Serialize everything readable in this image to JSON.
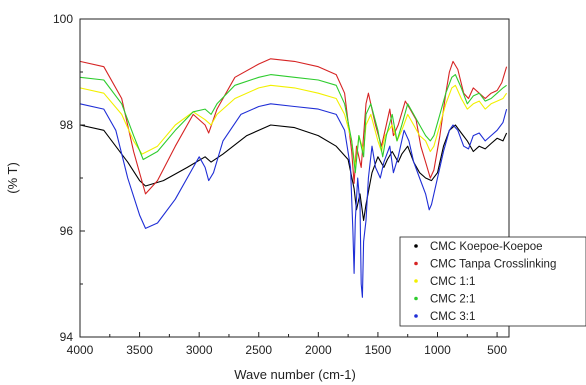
{
  "chart_data": {
    "type": "line",
    "title": "",
    "xlabel": "Wave number (cm-1)",
    "ylabel": "(% T)",
    "xlim": [
      4000,
      400
    ],
    "ylim": [
      94,
      100
    ],
    "x_reversed": true,
    "xticks": [
      4000,
      3500,
      3000,
      2500,
      2000,
      1500,
      1000,
      500
    ],
    "yticks": [
      94,
      96,
      98,
      100
    ],
    "grid": false,
    "legend_position": "bottom-right",
    "series": [
      {
        "name": "CMC Koepoe-Koepoe",
        "color": "#000000",
        "points": [
          [
            4000,
            98.0
          ],
          [
            3800,
            97.9
          ],
          [
            3600,
            97.3
          ],
          [
            3500,
            96.95
          ],
          [
            3450,
            96.85
          ],
          [
            3300,
            96.95
          ],
          [
            3100,
            97.2
          ],
          [
            2950,
            97.4
          ],
          [
            2900,
            97.3
          ],
          [
            2800,
            97.45
          ],
          [
            2600,
            97.8
          ],
          [
            2400,
            98.0
          ],
          [
            2200,
            97.95
          ],
          [
            2000,
            97.8
          ],
          [
            1850,
            97.6
          ],
          [
            1750,
            97.35
          ],
          [
            1700,
            96.8
          ],
          [
            1680,
            96.4
          ],
          [
            1650,
            96.7
          ],
          [
            1620,
            96.2
          ],
          [
            1600,
            96.5
          ],
          [
            1550,
            97.1
          ],
          [
            1500,
            97.4
          ],
          [
            1450,
            97.2
          ],
          [
            1420,
            97.35
          ],
          [
            1380,
            97.5
          ],
          [
            1330,
            97.3
          ],
          [
            1300,
            97.45
          ],
          [
            1250,
            97.6
          ],
          [
            1200,
            97.3
          ],
          [
            1150,
            97.1
          ],
          [
            1100,
            97.0
          ],
          [
            1050,
            96.95
          ],
          [
            1000,
            97.1
          ],
          [
            950,
            97.6
          ],
          [
            900,
            97.9
          ],
          [
            850,
            98.0
          ],
          [
            800,
            97.85
          ],
          [
            750,
            97.7
          ],
          [
            700,
            97.5
          ],
          [
            650,
            97.6
          ],
          [
            600,
            97.55
          ],
          [
            550,
            97.65
          ],
          [
            500,
            97.75
          ],
          [
            450,
            97.7
          ],
          [
            420,
            97.85
          ]
        ]
      },
      {
        "name": "CMC Tanpa Crosslinking",
        "color": "#d62424",
        "points": [
          [
            4000,
            99.2
          ],
          [
            3800,
            99.1
          ],
          [
            3650,
            98.5
          ],
          [
            3550,
            97.5
          ],
          [
            3450,
            96.7
          ],
          [
            3350,
            96.95
          ],
          [
            3200,
            97.6
          ],
          [
            3050,
            98.2
          ],
          [
            2950,
            98.0
          ],
          [
            2920,
            97.85
          ],
          [
            2850,
            98.3
          ],
          [
            2700,
            98.9
          ],
          [
            2500,
            99.15
          ],
          [
            2400,
            99.25
          ],
          [
            2200,
            99.2
          ],
          [
            2000,
            99.1
          ],
          [
            1850,
            98.95
          ],
          [
            1780,
            98.6
          ],
          [
            1720,
            97.5
          ],
          [
            1700,
            96.9
          ],
          [
            1680,
            97.6
          ],
          [
            1640,
            97.2
          ],
          [
            1600,
            98.4
          ],
          [
            1580,
            98.6
          ],
          [
            1520,
            98.0
          ],
          [
            1470,
            97.6
          ],
          [
            1440,
            97.9
          ],
          [
            1400,
            98.3
          ],
          [
            1370,
            97.8
          ],
          [
            1330,
            98.0
          ],
          [
            1270,
            98.45
          ],
          [
            1230,
            98.3
          ],
          [
            1180,
            98.1
          ],
          [
            1140,
            97.6
          ],
          [
            1100,
            97.3
          ],
          [
            1060,
            97.0
          ],
          [
            1030,
            97.15
          ],
          [
            980,
            97.8
          ],
          [
            930,
            98.6
          ],
          [
            900,
            99.0
          ],
          [
            870,
            99.2
          ],
          [
            830,
            99.05
          ],
          [
            780,
            98.6
          ],
          [
            740,
            98.5
          ],
          [
            700,
            98.7
          ],
          [
            650,
            98.6
          ],
          [
            600,
            98.5
          ],
          [
            550,
            98.6
          ],
          [
            500,
            98.65
          ],
          [
            460,
            98.8
          ],
          [
            420,
            99.1
          ]
        ]
      },
      {
        "name": "CMC 1:1",
        "color": "#f2f000",
        "points": [
          [
            4000,
            98.7
          ],
          [
            3800,
            98.6
          ],
          [
            3650,
            98.2
          ],
          [
            3550,
            97.7
          ],
          [
            3480,
            97.45
          ],
          [
            3350,
            97.6
          ],
          [
            3200,
            98.0
          ],
          [
            3050,
            98.25
          ],
          [
            2950,
            98.1
          ],
          [
            2900,
            98.0
          ],
          [
            2850,
            98.2
          ],
          [
            2700,
            98.5
          ],
          [
            2500,
            98.7
          ],
          [
            2400,
            98.75
          ],
          [
            2200,
            98.7
          ],
          [
            2000,
            98.6
          ],
          [
            1850,
            98.5
          ],
          [
            1780,
            98.2
          ],
          [
            1720,
            97.7
          ],
          [
            1690,
            97.2
          ],
          [
            1660,
            97.8
          ],
          [
            1620,
            97.5
          ],
          [
            1600,
            98.0
          ],
          [
            1560,
            98.2
          ],
          [
            1500,
            97.7
          ],
          [
            1470,
            97.5
          ],
          [
            1440,
            97.8
          ],
          [
            1380,
            98.0
          ],
          [
            1340,
            97.7
          ],
          [
            1300,
            97.9
          ],
          [
            1250,
            98.2
          ],
          [
            1200,
            98.0
          ],
          [
            1150,
            97.8
          ],
          [
            1100,
            97.7
          ],
          [
            1060,
            97.5
          ],
          [
            1030,
            97.6
          ],
          [
            980,
            98.0
          ],
          [
            930,
            98.4
          ],
          [
            880,
            98.7
          ],
          [
            850,
            98.75
          ],
          [
            800,
            98.5
          ],
          [
            750,
            98.3
          ],
          [
            700,
            98.4
          ],
          [
            650,
            98.45
          ],
          [
            600,
            98.3
          ],
          [
            550,
            98.4
          ],
          [
            500,
            98.45
          ],
          [
            450,
            98.5
          ],
          [
            420,
            98.6
          ]
        ]
      },
      {
        "name": "CMC 2:1",
        "color": "#2ecc2e",
        "points": [
          [
            4000,
            98.9
          ],
          [
            3800,
            98.85
          ],
          [
            3650,
            98.4
          ],
          [
            3550,
            97.8
          ],
          [
            3470,
            97.35
          ],
          [
            3350,
            97.5
          ],
          [
            3200,
            97.9
          ],
          [
            3050,
            98.25
          ],
          [
            2950,
            98.3
          ],
          [
            2900,
            98.2
          ],
          [
            2850,
            98.4
          ],
          [
            2700,
            98.75
          ],
          [
            2500,
            98.9
          ],
          [
            2400,
            98.95
          ],
          [
            2200,
            98.9
          ],
          [
            2000,
            98.85
          ],
          [
            1850,
            98.75
          ],
          [
            1780,
            98.4
          ],
          [
            1720,
            97.7
          ],
          [
            1690,
            97.1
          ],
          [
            1660,
            97.8
          ],
          [
            1620,
            97.4
          ],
          [
            1600,
            98.2
          ],
          [
            1560,
            98.4
          ],
          [
            1500,
            97.9
          ],
          [
            1460,
            97.4
          ],
          [
            1430,
            97.8
          ],
          [
            1380,
            98.2
          ],
          [
            1340,
            97.7
          ],
          [
            1300,
            98.0
          ],
          [
            1250,
            98.4
          ],
          [
            1200,
            98.2
          ],
          [
            1150,
            98.0
          ],
          [
            1100,
            97.8
          ],
          [
            1060,
            97.7
          ],
          [
            1030,
            97.8
          ],
          [
            980,
            98.2
          ],
          [
            930,
            98.6
          ],
          [
            880,
            98.9
          ],
          [
            850,
            98.95
          ],
          [
            800,
            98.7
          ],
          [
            750,
            98.4
          ],
          [
            700,
            98.55
          ],
          [
            650,
            98.6
          ],
          [
            600,
            98.45
          ],
          [
            550,
            98.5
          ],
          [
            500,
            98.6
          ],
          [
            450,
            98.7
          ],
          [
            420,
            98.75
          ]
        ]
      },
      {
        "name": "CMC 3:1",
        "color": "#1f2ed6",
        "points": [
          [
            4000,
            98.4
          ],
          [
            3800,
            98.3
          ],
          [
            3700,
            97.9
          ],
          [
            3600,
            97.0
          ],
          [
            3500,
            96.3
          ],
          [
            3450,
            96.05
          ],
          [
            3350,
            96.15
          ],
          [
            3200,
            96.6
          ],
          [
            3050,
            97.2
          ],
          [
            3000,
            97.4
          ],
          [
            2950,
            97.2
          ],
          [
            2920,
            96.95
          ],
          [
            2880,
            97.1
          ],
          [
            2800,
            97.7
          ],
          [
            2650,
            98.2
          ],
          [
            2500,
            98.35
          ],
          [
            2400,
            98.4
          ],
          [
            2200,
            98.35
          ],
          [
            2000,
            98.3
          ],
          [
            1850,
            98.2
          ],
          [
            1780,
            97.9
          ],
          [
            1730,
            97.2
          ],
          [
            1710,
            96.0
          ],
          [
            1700,
            95.2
          ],
          [
            1690,
            96.2
          ],
          [
            1670,
            97.0
          ],
          [
            1650,
            96.5
          ],
          [
            1640,
            95.0
          ],
          [
            1630,
            94.75
          ],
          [
            1620,
            95.8
          ],
          [
            1600,
            96.2
          ],
          [
            1580,
            97.0
          ],
          [
            1550,
            97.6
          ],
          [
            1520,
            97.2
          ],
          [
            1480,
            97.0
          ],
          [
            1450,
            97.3
          ],
          [
            1400,
            97.6
          ],
          [
            1370,
            97.1
          ],
          [
            1330,
            97.4
          ],
          [
            1280,
            97.9
          ],
          [
            1240,
            97.7
          ],
          [
            1200,
            97.3
          ],
          [
            1150,
            97.0
          ],
          [
            1100,
            96.7
          ],
          [
            1070,
            96.4
          ],
          [
            1050,
            96.5
          ],
          [
            1000,
            97.0
          ],
          [
            950,
            97.5
          ],
          [
            900,
            97.9
          ],
          [
            870,
            98.0
          ],
          [
            830,
            97.9
          ],
          [
            780,
            97.6
          ],
          [
            740,
            97.55
          ],
          [
            700,
            97.8
          ],
          [
            650,
            97.85
          ],
          [
            600,
            97.7
          ],
          [
            550,
            97.8
          ],
          [
            500,
            97.9
          ],
          [
            450,
            98.05
          ],
          [
            420,
            98.3
          ]
        ]
      }
    ]
  }
}
